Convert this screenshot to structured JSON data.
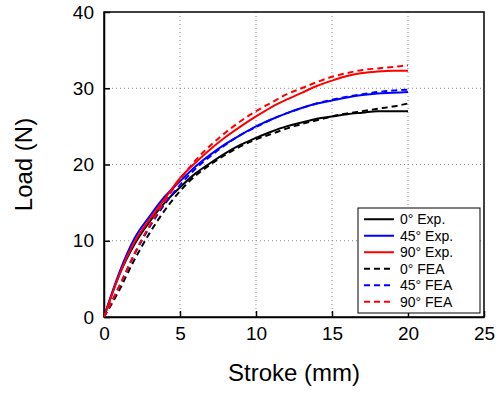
{
  "chart_data": {
    "type": "line",
    "x_label": "Stroke (mm)",
    "y_label": "Load (N)",
    "x": [
      0,
      1,
      2,
      3,
      4,
      5,
      6,
      7,
      8,
      9,
      10,
      11,
      12,
      13,
      14,
      15,
      16,
      17,
      18,
      19,
      20
    ],
    "series": [
      {
        "name": "0° Exp.",
        "color": "#000000",
        "line_style": "solid",
        "values": [
          0,
          5.5,
          9.5,
          12.5,
          15,
          17,
          18.8,
          20.2,
          21.5,
          22.6,
          23.5,
          24.3,
          25,
          25.5,
          26,
          26.3,
          26.6,
          26.8,
          27,
          27,
          27
        ]
      },
      {
        "name": "45° Exp.",
        "color": "#0000ff",
        "line_style": "solid",
        "values": [
          0,
          5.8,
          10.3,
          13.2,
          15.8,
          17.8,
          19.7,
          21.3,
          22.7,
          23.9,
          25,
          25.9,
          26.7,
          27.4,
          28,
          28.4,
          28.8,
          29.1,
          29.3,
          29.4,
          29.5
        ]
      },
      {
        "name": "90° Exp.",
        "color": "#ff0000",
        "line_style": "solid",
        "values": [
          0,
          5.5,
          9.8,
          12.8,
          15.5,
          18.2,
          20.2,
          22,
          23.6,
          25,
          26.3,
          27.5,
          28.5,
          29.4,
          30.3,
          31,
          31.6,
          32,
          32.2,
          32.3,
          32.3
        ]
      },
      {
        "name": "0° FEA",
        "color": "#000000",
        "line_style": "dashed",
        "values": [
          0,
          3.5,
          7.5,
          11,
          14,
          16.5,
          18.5,
          20,
          21.3,
          22.4,
          23.3,
          24,
          24.7,
          25.3,
          25.8,
          26.3,
          26.7,
          27,
          27.3,
          27.6,
          28
        ]
      },
      {
        "name": "45° FEA",
        "color": "#0000ff",
        "line_style": "dashed",
        "values": [
          0,
          4,
          8.2,
          11.8,
          14.8,
          17.3,
          19.4,
          21.1,
          22.6,
          23.9,
          24.9,
          25.9,
          26.7,
          27.4,
          28,
          28.5,
          28.9,
          29.2,
          29.5,
          29.7,
          29.8
        ]
      },
      {
        "name": "90° FEA",
        "color": "#ff0000",
        "line_style": "dashed",
        "values": [
          0,
          4,
          8.3,
          12,
          15.2,
          18,
          20.5,
          22.5,
          24.2,
          25.7,
          27,
          28.1,
          29.2,
          30,
          30.8,
          31.5,
          32,
          32.4,
          32.6,
          32.8,
          33
        ]
      }
    ],
    "xlim": [
      0,
      25
    ],
    "xticks": [
      0,
      5,
      10,
      15,
      20,
      25
    ],
    "ylim": [
      0,
      40
    ],
    "yticks": [
      0,
      10,
      20,
      30,
      40
    ],
    "grid": true,
    "legend": "bottom-right"
  }
}
